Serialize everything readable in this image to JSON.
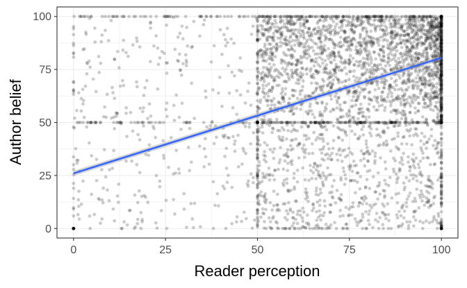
{
  "chart_data": {
    "type": "scatter",
    "title": "",
    "xlabel": "Reader perception",
    "ylabel": "Author belief",
    "xlim": [
      -4.5,
      104.5
    ],
    "ylim": [
      -4.5,
      104.5
    ],
    "x_ticks": [
      0,
      25,
      50,
      75,
      100
    ],
    "y_ticks": [
      0,
      25,
      50,
      75,
      100
    ],
    "x_tick_labels": [
      "0",
      "25",
      "50",
      "75",
      "100"
    ],
    "y_tick_labels": [
      "0",
      "25",
      "50",
      "75",
      "100"
    ],
    "grid": true,
    "legend": "none",
    "point_color": "#000000",
    "point_alpha": 0.2,
    "fit_line": {
      "method": "linear",
      "color": "#3366FF",
      "intercept": 26,
      "slope": 0.545,
      "x": [
        0,
        100
      ],
      "y": [
        26,
        80.5
      ],
      "confidence_band": true
    },
    "point_density_regions": [
      {
        "x": [
          0,
          100
        ],
        "y": [
          0,
          100
        ],
        "density": "sparse"
      },
      {
        "x": [
          50,
          100
        ],
        "y": [
          50,
          100
        ],
        "density": "very dense"
      },
      {
        "x": [
          50,
          100
        ],
        "y": [
          0,
          50
        ],
        "density": "moderate"
      }
    ],
    "heaped_values": {
      "x": [
        0,
        50,
        100
      ],
      "y": [
        0,
        50,
        100
      ]
    }
  }
}
